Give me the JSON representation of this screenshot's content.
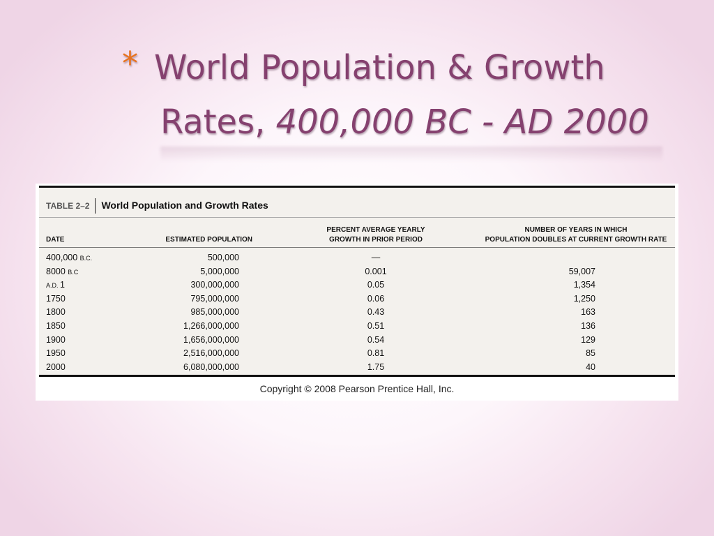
{
  "slide": {
    "bullet": "*",
    "title_line1": "World Population & Growth",
    "title_line2_prefix": "Rates, ",
    "title_line2_italic": "400,000 BC - AD 2000"
  },
  "table": {
    "number": "TABLE 2–2",
    "title": "World Population and Growth Rates",
    "headers": {
      "date": "DATE",
      "population": "ESTIMATED POPULATION",
      "growth_line1": "PERCENT AVERAGE YEARLY",
      "growth_line2": "GROWTH IN PRIOR PERIOD",
      "years_line1": "NUMBER OF YEARS IN WHICH",
      "years_line2": "POPULATION DOUBLES AT CURRENT GROWTH RATE"
    },
    "rows": [
      {
        "date_main": "400,000 ",
        "date_small": "B.C.",
        "date_after": "",
        "population": "500,000",
        "growth": "—",
        "years": ""
      },
      {
        "date_main": "8000 ",
        "date_small": "B.C",
        "date_after": "",
        "population": "5,000,000",
        "growth": "0.001",
        "years": "59,007"
      },
      {
        "date_main": "",
        "date_small": "A.D. ",
        "date_after": "1",
        "population": "300,000,000",
        "growth": "0.05",
        "years": "1,354"
      },
      {
        "date_main": "1750",
        "date_small": "",
        "date_after": "",
        "population": "795,000,000",
        "growth": "0.06",
        "years": "1,250"
      },
      {
        "date_main": "1800",
        "date_small": "",
        "date_after": "",
        "population": "985,000,000",
        "growth": "0.43",
        "years": "163"
      },
      {
        "date_main": "1850",
        "date_small": "",
        "date_after": "",
        "population": "1,266,000,000",
        "growth": "0.51",
        "years": "136"
      },
      {
        "date_main": "1900",
        "date_small": "",
        "date_after": "",
        "population": "1,656,000,000",
        "growth": "0.54",
        "years": "129"
      },
      {
        "date_main": "1950",
        "date_small": "",
        "date_after": "",
        "population": "2,516,000,000",
        "growth": "0.81",
        "years": "85"
      },
      {
        "date_main": "2000",
        "date_small": "",
        "date_after": "",
        "population": "6,080,000,000",
        "growth": "1.75",
        "years": "40"
      }
    ]
  },
  "copyright": "Copyright © 2008 Pearson Prentice Hall, Inc.",
  "colors": {
    "title": "#85416f",
    "bullet": "#e8731d",
    "table_background": "#f3f1ed"
  }
}
